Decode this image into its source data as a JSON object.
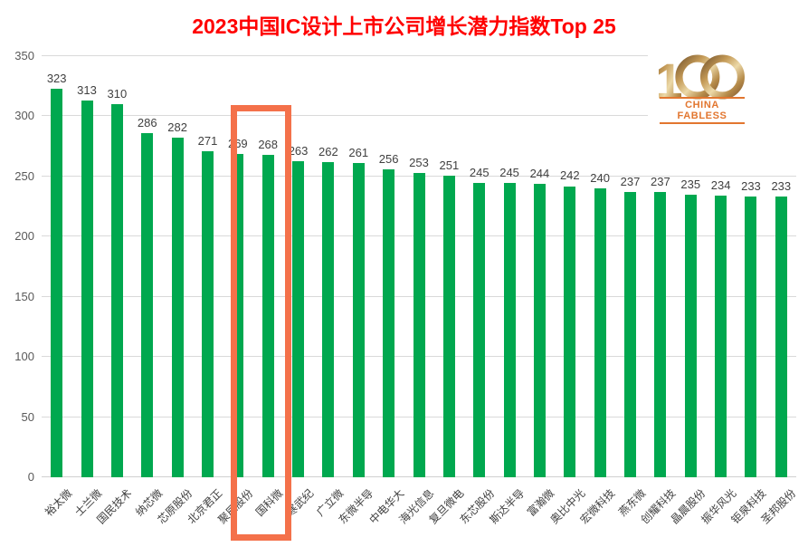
{
  "logo": {
    "number": "1",
    "zeros": "00",
    "text": "CHINA FABLESS"
  },
  "colors": {
    "title": "#FF0000",
    "bar": "#00A84F",
    "highlight_box": "#F4714A",
    "grid": "#D9D9D9",
    "ytick_text": "#595959",
    "value_text": "#404040",
    "logo_orange": "#E2762F",
    "logo_gold": "#C49A57"
  },
  "chart_data": {
    "type": "bar",
    "title": "2023中国IC设计上市公司增长潜力指数Top 25",
    "categories": [
      "裕太微",
      "士兰微",
      "国民技术",
      "纳芯微",
      "芯原股份",
      "北京君正",
      "聚辰股份",
      "国科微",
      "寒武纪",
      "广立微",
      "东微半导",
      "中电华大",
      "海光信息",
      "复旦微电",
      "东芯股份",
      "斯达半导",
      "富瀚微",
      "奥比中光",
      "宏微科技",
      "燕东微",
      "创耀科技",
      "晶晨股份",
      "振华风光",
      "钜泉科技",
      "圣邦股份"
    ],
    "values": [
      323,
      313,
      310,
      286,
      282,
      271,
      269,
      268,
      263,
      262,
      261,
      256,
      253,
      251,
      245,
      245,
      244,
      242,
      240,
      237,
      237,
      235,
      234,
      233,
      233
    ],
    "xlabel": "",
    "ylabel": "",
    "ylim": [
      0,
      350
    ],
    "yticks": [
      0,
      50,
      100,
      150,
      200,
      250,
      300,
      350
    ],
    "grid": true,
    "legend": false,
    "data_labels": true,
    "highlight": {
      "category": "国科微",
      "value": 268
    }
  }
}
